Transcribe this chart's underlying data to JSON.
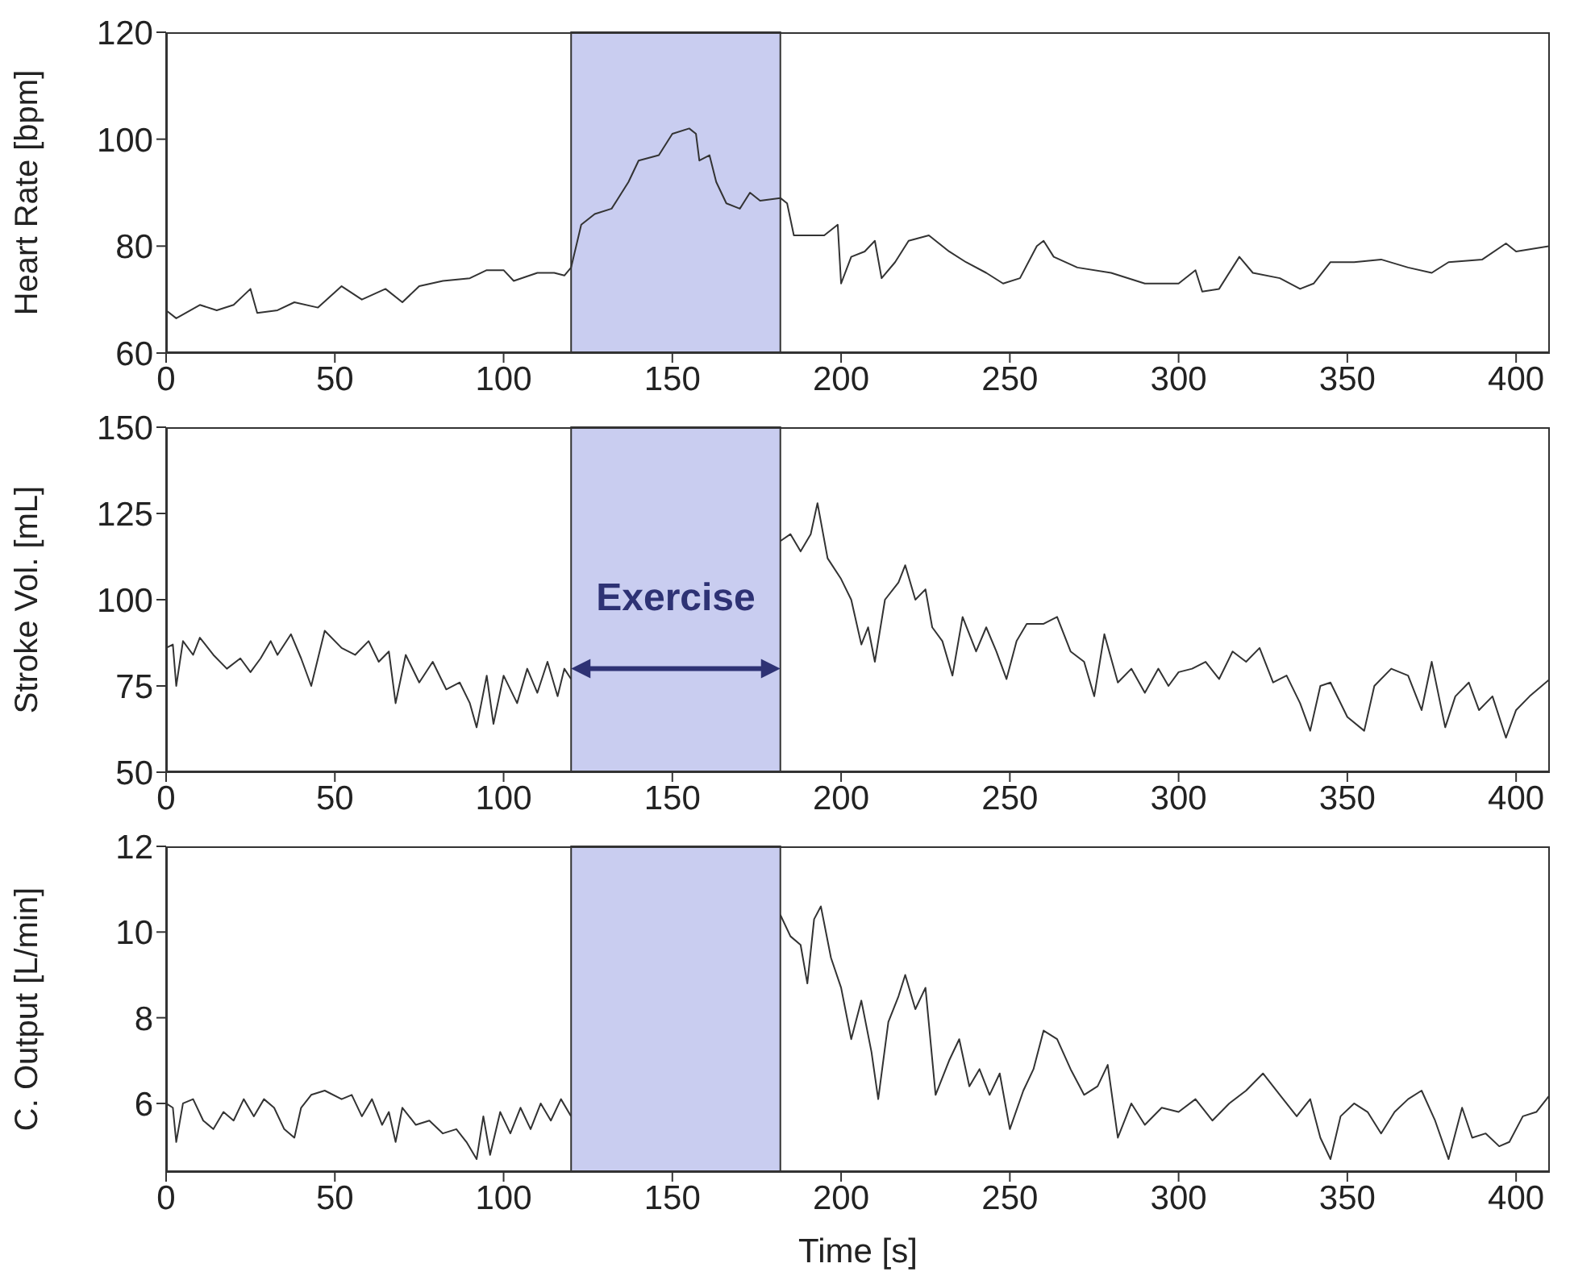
{
  "chart_data": [
    {
      "type": "line",
      "ylabel": "Heart Rate [bpm]",
      "xlim": [
        0,
        410
      ],
      "xticks": [
        0,
        50,
        100,
        150,
        200,
        250,
        300,
        350,
        400
      ],
      "ylim": [
        60,
        120
      ],
      "yticks": [
        60,
        80,
        100,
        120
      ],
      "color": "#333333",
      "bands": [
        {
          "axis": "x",
          "from": 120,
          "to": 182,
          "color": "#c9cdf0"
        }
      ],
      "x": [
        0,
        3,
        10,
        15,
        20,
        25,
        27,
        33,
        38,
        45,
        52,
        58,
        65,
        70,
        75,
        82,
        90,
        95,
        100,
        103,
        110,
        115,
        118,
        120,
        123,
        127,
        132,
        137,
        140,
        146,
        150,
        155,
        157,
        158,
        161,
        163,
        166,
        170,
        173,
        176,
        182,
        184,
        186,
        195,
        199,
        200,
        203,
        207,
        210,
        212,
        216,
        220,
        226,
        232,
        237,
        243,
        248,
        253,
        258,
        260,
        263,
        270,
        280,
        290,
        300,
        305,
        307,
        312,
        318,
        322,
        330,
        336,
        340,
        345,
        352,
        360,
        368,
        375,
        380,
        390,
        397,
        400,
        410
      ],
      "values": [
        68,
        66.5,
        69,
        68,
        69,
        72,
        67.5,
        68,
        69.5,
        68.5,
        72.5,
        70,
        72,
        69.5,
        72.5,
        73.5,
        74,
        75.5,
        75.5,
        73.5,
        75,
        75,
        74.5,
        76,
        84,
        86,
        87,
        92,
        96,
        97,
        101,
        102,
        101,
        96,
        97,
        92,
        88,
        87,
        90,
        88.5,
        89,
        88,
        82,
        82,
        84,
        73,
        78,
        79,
        81,
        74,
        77,
        81,
        82,
        79,
        77,
        75,
        73,
        74,
        80,
        81,
        78,
        76,
        75,
        73,
        73,
        75.5,
        71.5,
        72,
        78,
        75,
        74,
        72,
        73,
        77,
        77,
        77.5,
        76,
        75,
        77,
        77.5,
        80.5,
        79,
        80
      ]
    },
    {
      "type": "line",
      "ylabel": "Stroke Vol. [mL]",
      "annotations": [
        "Exercise"
      ],
      "xlim": [
        0,
        410
      ],
      "xticks": [
        0,
        50,
        100,
        150,
        200,
        250,
        300,
        350,
        400
      ],
      "ylim": [
        50,
        150
      ],
      "yticks": [
        50,
        75,
        100,
        125,
        150
      ],
      "color": "#333333",
      "bands": [
        {
          "axis": "x",
          "from": 120,
          "to": 182,
          "color": "#c9cdf0"
        }
      ],
      "x": [
        0,
        2,
        3,
        5,
        8,
        10,
        14,
        18,
        22,
        25,
        28,
        31,
        33,
        37,
        40,
        43,
        47,
        52,
        56,
        60,
        63,
        66,
        68,
        71,
        75,
        79,
        83,
        87,
        90,
        92,
        95,
        97,
        100,
        104,
        107,
        110,
        113,
        116,
        118,
        120,
        151,
        182,
        185,
        188,
        191,
        193,
        196,
        200,
        203,
        206,
        208,
        210,
        213,
        217,
        219,
        222,
        225,
        227,
        230,
        233,
        236,
        240,
        243,
        246,
        249,
        252,
        255,
        260,
        264,
        268,
        272,
        275,
        278,
        282,
        286,
        290,
        294,
        297,
        300,
        304,
        308,
        312,
        316,
        320,
        324,
        328,
        332,
        336,
        339,
        342,
        345,
        350,
        355,
        358,
        363,
        368,
        372,
        375,
        379,
        382,
        386,
        389,
        393,
        397,
        400,
        404,
        410
      ],
      "values": [
        86,
        87,
        75,
        88,
        84,
        89,
        84,
        80,
        83,
        79,
        83,
        88,
        84,
        90,
        83,
        75,
        91,
        86,
        84,
        88,
        82,
        85,
        70,
        84,
        76,
        82,
        74,
        76,
        70,
        63,
        78,
        64,
        78,
        70,
        80,
        73,
        82,
        72,
        80,
        77,
        null,
        117,
        119,
        114,
        119,
        128,
        112,
        106,
        100,
        87,
        92,
        82,
        100,
        105,
        110,
        100,
        103,
        92,
        88,
        78,
        95,
        85,
        92,
        85,
        77,
        88,
        93,
        93,
        95,
        85,
        82,
        72,
        90,
        76,
        80,
        73,
        80,
        75,
        79,
        80,
        82,
        77,
        85,
        82,
        86,
        76,
        78,
        70,
        62,
        75,
        76,
        66,
        62,
        75,
        80,
        78,
        68,
        82,
        63,
        72,
        76,
        68,
        72,
        60,
        68,
        72,
        77
      ]
    },
    {
      "type": "line",
      "ylabel": "C. Output [L/min]",
      "xlabel": "Time [s]",
      "xlim": [
        0,
        410
      ],
      "xticks": [
        0,
        50,
        100,
        150,
        200,
        250,
        300,
        350,
        400
      ],
      "ylim": [
        4.4,
        12
      ],
      "yticks": [
        6,
        8,
        10,
        12
      ],
      "color": "#333333",
      "bands": [
        {
          "axis": "x",
          "from": 120,
          "to": 182,
          "color": "#c9cdf0"
        }
      ],
      "x": [
        0,
        2,
        3,
        5,
        8,
        11,
        14,
        17,
        20,
        23,
        26,
        29,
        32,
        35,
        38,
        40,
        43,
        47,
        52,
        55,
        58,
        61,
        64,
        66,
        68,
        70,
        74,
        78,
        82,
        86,
        89,
        92,
        94,
        96,
        99,
        102,
        105,
        108,
        111,
        114,
        117,
        120,
        151,
        182,
        185,
        188,
        190,
        192,
        194,
        197,
        200,
        203,
        206,
        209,
        211,
        214,
        217,
        219,
        222,
        225,
        228,
        232,
        235,
        238,
        241,
        244,
        247,
        250,
        254,
        257,
        260,
        264,
        268,
        272,
        276,
        279,
        282,
        286,
        290,
        295,
        300,
        305,
        310,
        315,
        320,
        325,
        330,
        335,
        339,
        342,
        345,
        348,
        352,
        356,
        360,
        364,
        368,
        372,
        376,
        380,
        384,
        387,
        391,
        395,
        398,
        402,
        406,
        410
      ],
      "values": [
        6,
        5.9,
        5.1,
        6,
        6.1,
        5.6,
        5.4,
        5.8,
        5.6,
        6.1,
        5.7,
        6.1,
        5.9,
        5.4,
        5.2,
        5.9,
        6.2,
        6.3,
        6.1,
        6.2,
        5.7,
        6.1,
        5.5,
        5.8,
        5.1,
        5.9,
        5.5,
        5.6,
        5.3,
        5.4,
        5.1,
        4.7,
        5.7,
        4.8,
        5.8,
        5.3,
        5.9,
        5.4,
        6,
        5.6,
        6.1,
        5.7,
        null,
        10.4,
        9.9,
        9.7,
        8.8,
        10.3,
        10.6,
        9.4,
        8.7,
        7.5,
        8.4,
        7.2,
        6.1,
        7.9,
        8.5,
        9,
        8.2,
        8.7,
        6.2,
        7,
        7.5,
        6.4,
        6.8,
        6.2,
        6.7,
        5.4,
        6.3,
        6.8,
        7.7,
        7.5,
        6.8,
        6.2,
        6.4,
        6.9,
        5.2,
        6,
        5.5,
        5.9,
        5.8,
        6.1,
        5.6,
        6,
        6.3,
        6.7,
        6.2,
        5.7,
        6.1,
        5.2,
        4.7,
        5.7,
        6,
        5.8,
        5.3,
        5.8,
        6.1,
        6.3,
        5.6,
        4.7,
        5.9,
        5.2,
        5.3,
        5,
        5.1,
        5.7,
        5.8,
        6.2
      ]
    }
  ]
}
